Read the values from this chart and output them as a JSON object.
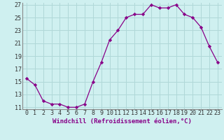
{
  "x": [
    0,
    1,
    2,
    3,
    4,
    5,
    6,
    7,
    8,
    9,
    10,
    11,
    12,
    13,
    14,
    15,
    16,
    17,
    18,
    19,
    20,
    21,
    22,
    23
  ],
  "y": [
    15.5,
    14.5,
    12.0,
    11.5,
    11.5,
    11.0,
    11.0,
    11.5,
    15.0,
    18.0,
    21.5,
    23.0,
    25.0,
    25.5,
    25.5,
    27.0,
    26.5,
    26.5,
    27.0,
    25.5,
    25.0,
    23.5,
    20.5,
    18.0
  ],
  "line_color": "#880088",
  "marker": "D",
  "marker_size": 2.2,
  "bg_color": "#cff0f0",
  "grid_color": "#b0d8d8",
  "xlabel": "Windchill (Refroidissement éolien,°C)",
  "ylim_min": 11,
  "ylim_max": 27,
  "yticks": [
    11,
    13,
    15,
    17,
    19,
    21,
    23,
    25,
    27
  ],
  "xticks": [
    0,
    1,
    2,
    3,
    4,
    5,
    6,
    7,
    8,
    9,
    10,
    11,
    12,
    13,
    14,
    15,
    16,
    17,
    18,
    19,
    20,
    21,
    22,
    23
  ],
  "xlabel_fontsize": 6.5,
  "tick_fontsize": 6.0,
  "line_width": 0.9
}
